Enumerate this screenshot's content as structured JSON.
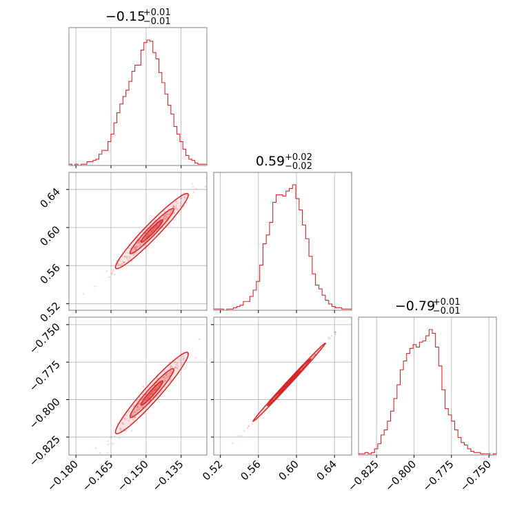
{
  "chart_data": {
    "type": "corner",
    "color": "#d62728",
    "params": [
      {
        "title": {
          "main": "−0.15",
          "sup": "+0.01",
          "sub": "−0.01"
        },
        "range": [
          -0.183,
          -0.124
        ],
        "ticks": [
          -0.18,
          -0.165,
          -0.15,
          -0.135
        ],
        "tick_labels": [
          "−0.180",
          "−0.165",
          "−0.150",
          "−0.135"
        ],
        "hist": [
          1,
          0,
          1,
          0,
          1,
          1,
          3,
          3,
          4,
          5,
          9,
          12,
          12,
          19,
          25,
          34,
          42,
          49,
          55,
          60,
          67,
          75,
          80,
          80,
          92,
          98,
          100,
          99,
          90,
          85,
          74,
          66,
          57,
          48,
          41,
          31,
          25,
          19,
          13,
          8,
          5,
          4,
          2,
          1,
          1,
          1
        ]
      },
      {
        "title": {
          "main": "0.59",
          "sup": "+0.02",
          "sub": "−0.02"
        },
        "range": [
          0.513,
          0.658
        ],
        "ticks": [
          0.52,
          0.56,
          0.6,
          0.64
        ],
        "tick_labels": [
          "0.52",
          "0.56",
          "0.60",
          "0.64"
        ],
        "hist": [
          1,
          1,
          1,
          0,
          1,
          1,
          2,
          3,
          4,
          7,
          7,
          11,
          16,
          23,
          36,
          53,
          60,
          70,
          86,
          92,
          92,
          91,
          95,
          97,
          100,
          89,
          80,
          68,
          57,
          43,
          29,
          20,
          17,
          12,
          8,
          5,
          3,
          2,
          2,
          1,
          1,
          1
        ]
      },
      {
        "title": {
          "main": "−0.79",
          "sup": "+0.01",
          "sub": "−0.01"
        },
        "range": [
          -0.837,
          -0.745
        ],
        "ticks": [
          -0.825,
          -0.8,
          -0.775,
          -0.75
        ],
        "tick_labels": [
          "−0.825",
          "−0.800",
          "−0.775",
          "−0.750"
        ],
        "hist": [
          1,
          1,
          2,
          1,
          2,
          5,
          9,
          16,
          20,
          27,
          35,
          45,
          56,
          68,
          75,
          81,
          85,
          88,
          86,
          90,
          91,
          95,
          100,
          97,
          86,
          71,
          52,
          37,
          32,
          27,
          20,
          14,
          10,
          8,
          5,
          3,
          2,
          2,
          1,
          1,
          1,
          0,
          1
        ]
      }
    ],
    "pairs": [
      {
        "x_param": 0,
        "y_param": 1,
        "slope": 2.44,
        "intercept": 0.9562,
        "spread": 0.0045,
        "x_mean": -0.1475,
        "x_sd": 0.006
      },
      {
        "x_param": 0,
        "y_param": 2,
        "slope": 1.67,
        "intercept": -0.5493,
        "spread": 0.0032,
        "x_mean": -0.1475,
        "x_sd": 0.006
      },
      {
        "x_param": 1,
        "y_param": 2,
        "slope": 0.685,
        "intercept": -1.1942,
        "spread": 0.0008,
        "x_mean": 0.5924,
        "x_sd": 0.0146
      }
    ],
    "grid": true
  }
}
